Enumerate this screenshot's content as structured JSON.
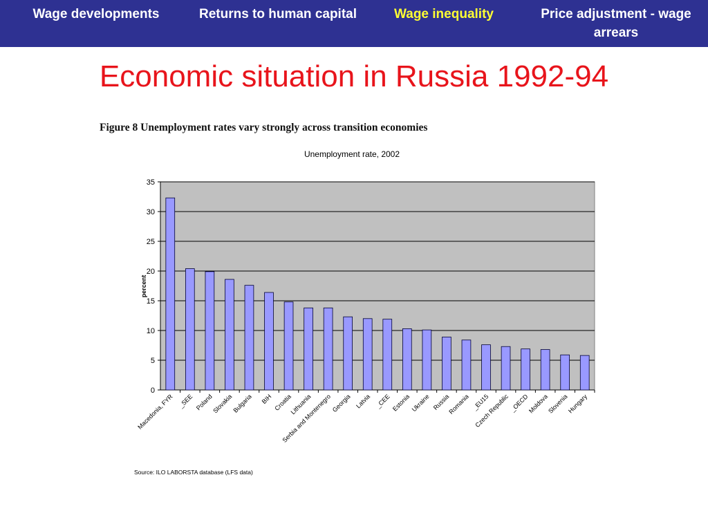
{
  "nav": {
    "tabs": [
      {
        "label": "Wage developments",
        "active": false
      },
      {
        "label": "Returns to human capital",
        "active": false
      },
      {
        "label": "Wage inequality",
        "active": true
      },
      {
        "label": "Price adjustment - wage arrears",
        "active": false
      }
    ],
    "active_color": "#ffff33",
    "bar_color": "#2e3192"
  },
  "slide": {
    "title": "Economic situation in Russia 1992-94",
    "title_color": "#e8141b"
  },
  "figure": {
    "caption": "Figure  8  Unemployment rates vary strongly across transition economies",
    "source": "Source: ILO LABORSTA database (LFS data)"
  },
  "chart_data": {
    "type": "bar",
    "title": "Unemployment rate, 2002",
    "xlabel": "",
    "ylabel": "percent",
    "ylim": [
      0,
      35
    ],
    "yticks": [
      0,
      5,
      10,
      15,
      20,
      25,
      30,
      35
    ],
    "grid": true,
    "legend": "none",
    "bar_color": "#9999ff",
    "plot_bg": "#c0c0c0",
    "categories": [
      "Macedonia, FYR",
      "_SEE",
      "Poland",
      "Slovakia",
      "Bulgaria",
      "BIH",
      "Croatia",
      "Lithuania",
      "Serbia and Montenegro",
      "Georgia",
      "Latvia",
      "_CEE",
      "Estonia",
      "Ukraine",
      "Russia",
      "Romania",
      "_EU15",
      "Czech Republic",
      "_OECD",
      "Moldova",
      "Slovenia",
      "Hungary"
    ],
    "values": [
      32.3,
      20.4,
      19.9,
      18.6,
      17.6,
      16.4,
      14.8,
      13.8,
      13.8,
      12.3,
      12.0,
      11.9,
      10.3,
      10.1,
      8.9,
      8.4,
      7.6,
      7.3,
      6.9,
      6.8,
      5.9,
      5.8
    ]
  }
}
